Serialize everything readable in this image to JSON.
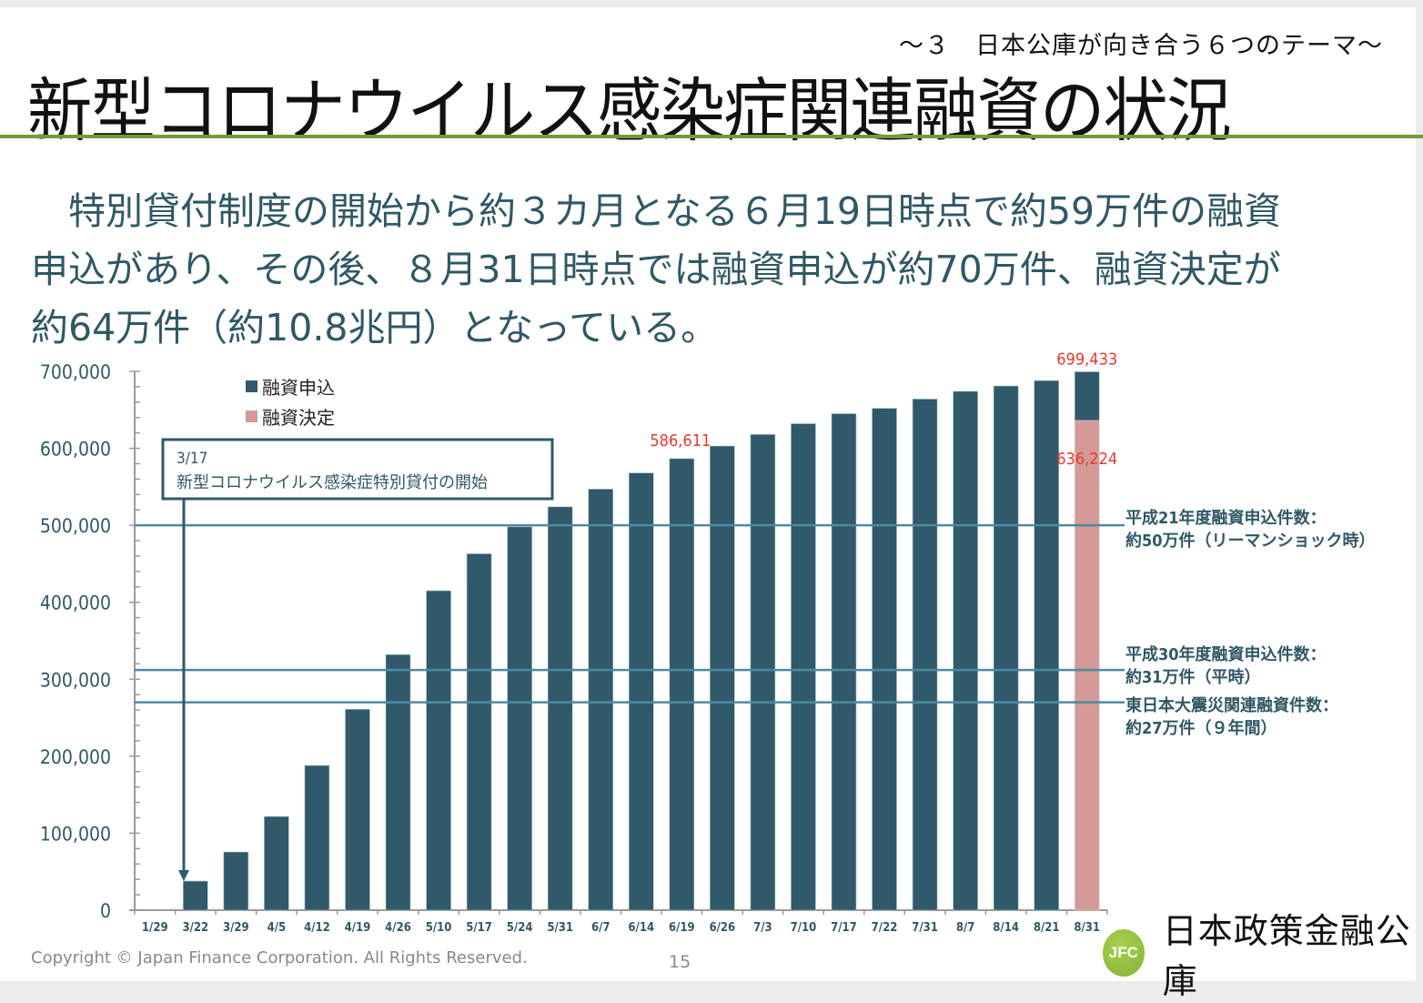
{
  "header": {
    "subtitle": "～３　日本公庫が向き合う６つのテーマ～",
    "title": "新型コロナウイルス感染症関連融資の状況"
  },
  "lead": {
    "lines": [
      "　特別貸付制度の開始から約３カ月となる６月19日時点で約59万件の融資",
      "申込があり、その後、８月31日時点では融資申込が約70万件、融資決定が",
      "約64万件（約10.8兆円）となっている。"
    ]
  },
  "colors": {
    "applications": "#30596a",
    "decisions": "#d39a97",
    "reference_line": "#4d8aa0",
    "data_label": "#e53a2a",
    "title_rule": "#77983a"
  },
  "chart_data": {
    "type": "bar",
    "title": "",
    "xlabel": "",
    "ylabel": "",
    "ylim": [
      0,
      700000
    ],
    "yticks": [
      "0",
      "100,000",
      "200,000",
      "300,000",
      "400,000",
      "500,000",
      "600,000",
      "700,000"
    ],
    "ytick_values": [
      0,
      100000,
      200000,
      300000,
      400000,
      500000,
      600000,
      700000
    ],
    "legend_position": "top-left",
    "categories": [
      "1/29",
      "3/22",
      "3/29",
      "4/5",
      "4/12",
      "4/19",
      "4/26",
      "5/10",
      "5/17",
      "5/24",
      "5/31",
      "6/7",
      "6/14",
      "6/19",
      "6/26",
      "7/3",
      "7/10",
      "7/17",
      "7/22",
      "7/31",
      "8/7",
      "8/14",
      "8/21",
      "8/31"
    ],
    "series": [
      {
        "name": "融資申込",
        "color_key": "applications",
        "values": [
          0,
          37800,
          75600,
          121700,
          188000,
          261000,
          332000,
          415000,
          463000,
          498000,
          524000,
          547000,
          568000,
          586611,
          603000,
          618000,
          632000,
          645000,
          652000,
          664000,
          674000,
          681000,
          688000,
          699433
        ]
      },
      {
        "name": "融資決定",
        "color_key": "decisions",
        "values": [
          null,
          null,
          null,
          null,
          null,
          null,
          null,
          null,
          null,
          null,
          null,
          null,
          null,
          null,
          null,
          null,
          null,
          null,
          null,
          null,
          null,
          null,
          null,
          636224
        ]
      }
    ],
    "data_labels": [
      {
        "category": "6/19",
        "text": "586,611",
        "value": 586611
      },
      {
        "category": "8/31",
        "text": "699,433",
        "value": 699433
      },
      {
        "category": "8/31",
        "text": "636,224",
        "value": 636224
      }
    ],
    "reference_lines": [
      {
        "value": 500000,
        "label_line1": "平成21年度融資申込件数：",
        "label_line2": "約50万件（リーマンショック時）"
      },
      {
        "value": 312000,
        "label_line1": "平成30年度融資申込件数：",
        "label_line2": "約31万件（平時）"
      },
      {
        "value": 270000,
        "label_line1": "東日本大震災関連融資件数：",
        "label_line2": "約27万件（９年間）"
      }
    ],
    "annotation": {
      "date": "3/17",
      "text": "新型コロナウイルス感染症特別貸付の開始",
      "points_to_category": "3/22"
    }
  },
  "footer": {
    "copyright": "Copyright © Japan Finance Corporation. All Rights Reserved.",
    "page_number": "15",
    "logo_mark": "JFC",
    "logo_text": "日本政策金融公庫"
  }
}
